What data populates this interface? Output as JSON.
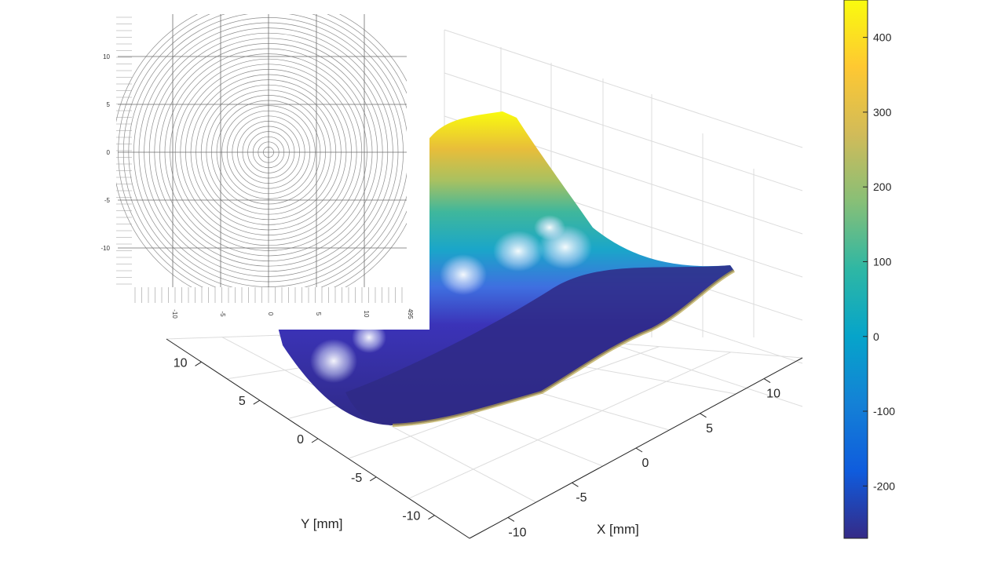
{
  "chart_data": [
    {
      "type": "surface3d",
      "xlabel": "X [mm]",
      "ylabel": "Y [mm]",
      "x_ticks": [
        "-10",
        "-5",
        "0",
        "5",
        "10"
      ],
      "y_ticks": [
        "-10",
        "-5",
        "0",
        "5",
        "10"
      ],
      "x_range": [
        -13,
        13
      ],
      "y_range": [
        -13,
        13
      ],
      "z_range": [
        -270,
        450
      ],
      "grid": true,
      "colormap": "parula",
      "colorbar": {
        "position": "right",
        "ticks": [
          "400",
          "300",
          "200",
          "100",
          "0",
          "-100",
          "-200"
        ],
        "tick_values": [
          400,
          300,
          200,
          100,
          0,
          -100,
          -200
        ],
        "range": [
          -270,
          450
        ],
        "colors": [
          "#352a87",
          "#0f5cdd",
          "#1481d6",
          "#06a4ca",
          "#2eb7a4",
          "#87bf77",
          "#d1bb59",
          "#fec832",
          "#f9fb0e"
        ]
      }
    },
    {
      "type": "contour",
      "inset_position": "top-left",
      "x_ticks": [
        "-10",
        "-5",
        "0",
        "5",
        "10",
        "495"
      ],
      "y_ticks": [
        "10",
        "5",
        "0",
        "-5",
        "-10"
      ],
      "x_range": [
        -14,
        14
      ],
      "y_range": [
        -14,
        14
      ],
      "pattern": "concentric rings",
      "ring_count": 30,
      "grid": true
    }
  ]
}
